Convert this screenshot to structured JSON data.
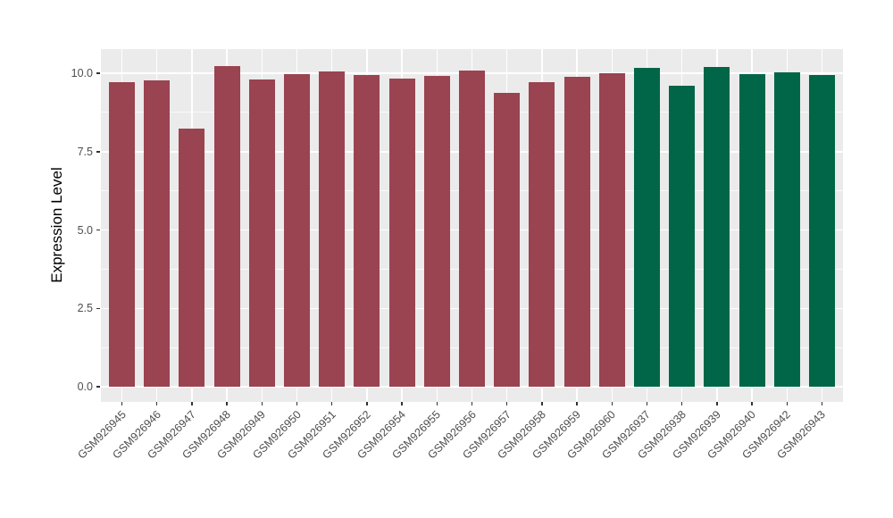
{
  "figure": {
    "background": "#FFFFFF"
  },
  "colors": {
    "bar_red": "#9A4351",
    "bar_green": "#006647",
    "panel_background": "#EBEBEB",
    "gridline": "#FFFFFF",
    "axis_text": "#4D4D4D",
    "axis_tick": "#333333",
    "axis_title": "#000000"
  },
  "chart_data": {
    "type": "bar",
    "title": "",
    "xlabel": "",
    "ylabel": "Expression Level",
    "legend_position": "none",
    "grid": true,
    "panel_bg": "#EBEBEB",
    "grid_color": "#FFFFFF",
    "categories": [
      "GSM926945",
      "GSM926946",
      "GSM926947",
      "GSM926948",
      "GSM926949",
      "GSM926950",
      "GSM926951",
      "GSM926952",
      "GSM926954",
      "GSM926955",
      "GSM926956",
      "GSM926957",
      "GSM926958",
      "GSM926959",
      "GSM926960",
      "GSM926937",
      "GSM926938",
      "GSM926939",
      "GSM926940",
      "GSM926942",
      "GSM926943"
    ],
    "values": [
      9.71,
      9.78,
      8.23,
      10.22,
      9.8,
      9.97,
      10.05,
      9.95,
      9.82,
      9.92,
      10.09,
      9.38,
      9.72,
      9.88,
      9.99,
      10.18,
      9.61,
      10.21,
      9.98,
      10.04,
      9.94
    ],
    "groups": [
      "red",
      "red",
      "red",
      "red",
      "red",
      "red",
      "red",
      "red",
      "red",
      "red",
      "red",
      "red",
      "red",
      "red",
      "red",
      "green",
      "green",
      "green",
      "green",
      "green",
      "green"
    ],
    "group_colors": {
      "red": "#9A4351",
      "green": "#006647"
    },
    "ytick_values": [
      0,
      2.5,
      5,
      7.5,
      10
    ],
    "ytick_labels": [
      "0.0",
      "2.5",
      "5.0",
      "7.5",
      "10.0"
    ],
    "yminor_values": [
      1.25,
      3.75,
      6.25,
      8.75
    ],
    "ylim_display": [
      -0.48,
      10.77
    ],
    "ylim": [
      0,
      10.25
    ]
  }
}
